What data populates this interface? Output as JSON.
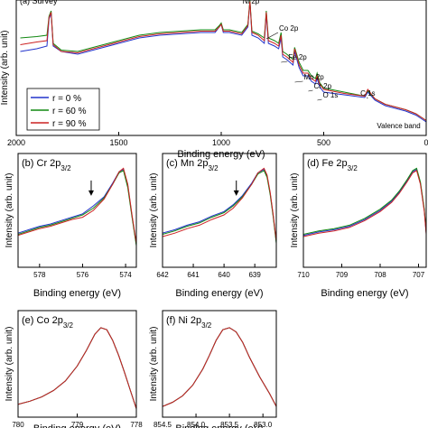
{
  "chart_data": [
    {
      "id": "survey",
      "type": "line",
      "panel_label": "(a) Survey",
      "xlabel": "Binding energy (eV)",
      "ylabel": "Intensity (arb. unit)",
      "xlim": [
        2000,
        0
      ],
      "x_reversed": true,
      "xticks": [
        2000,
        1500,
        1000,
        500,
        0
      ],
      "xtick_labels": [
        "2000",
        "1500",
        "1000",
        "500",
        "0"
      ],
      "series": [
        {
          "name": "r = 0 %",
          "color": "#2233cc",
          "x": [
            1980,
            1900,
            1850,
            1840,
            1830,
            1820,
            1780,
            1700,
            1600,
            1500,
            1400,
            1300,
            1200,
            1100,
            1030,
            1010,
            1000,
            990,
            960,
            900,
            870,
            860,
            850,
            820,
            790,
            780,
            770,
            740,
            720,
            708,
            700,
            680,
            650,
            642,
            620,
            600,
            577,
            560,
            540,
            532,
            520,
            500,
            400,
            300,
            285,
            250,
            200,
            100,
            50,
            20,
            0
          ],
          "y": [
            0.62,
            0.64,
            0.66,
            0.86,
            0.9,
            0.66,
            0.62,
            0.6,
            0.64,
            0.68,
            0.72,
            0.74,
            0.75,
            0.76,
            0.76,
            0.8,
            0.82,
            0.76,
            0.76,
            0.74,
            0.8,
            0.99,
            0.74,
            0.72,
            0.68,
            0.9,
            0.68,
            0.66,
            0.64,
            0.72,
            0.58,
            0.56,
            0.52,
            0.62,
            0.5,
            0.44,
            0.44,
            0.4,
            0.38,
            0.42,
            0.36,
            0.32,
            0.3,
            0.28,
            0.32,
            0.26,
            0.22,
            0.18,
            0.15,
            0.12,
            0.1
          ]
        },
        {
          "name": "r = 60 %",
          "color": "#118811",
          "x": [
            1980,
            1900,
            1850,
            1840,
            1830,
            1820,
            1780,
            1700,
            1600,
            1500,
            1400,
            1300,
            1200,
            1100,
            1030,
            1010,
            1000,
            990,
            960,
            900,
            870,
            860,
            850,
            820,
            790,
            780,
            770,
            740,
            720,
            708,
            700,
            680,
            650,
            642,
            620,
            600,
            577,
            560,
            540,
            532,
            520,
            500,
            400,
            300,
            285,
            250,
            200,
            100,
            50,
            20,
            0
          ],
          "y": [
            0.72,
            0.73,
            0.74,
            0.88,
            0.92,
            0.68,
            0.63,
            0.62,
            0.66,
            0.7,
            0.74,
            0.76,
            0.77,
            0.78,
            0.78,
            0.81,
            0.83,
            0.78,
            0.78,
            0.76,
            0.82,
            1.0,
            0.77,
            0.75,
            0.72,
            0.92,
            0.72,
            0.7,
            0.68,
            0.76,
            0.62,
            0.6,
            0.56,
            0.65,
            0.54,
            0.48,
            0.48,
            0.44,
            0.42,
            0.46,
            0.39,
            0.35,
            0.32,
            0.29,
            0.33,
            0.27,
            0.23,
            0.19,
            0.16,
            0.13,
            0.11
          ]
        },
        {
          "name": "r = 90 %",
          "color": "#cc2222",
          "x": [
            1980,
            1900,
            1850,
            1840,
            1830,
            1820,
            1780,
            1700,
            1600,
            1500,
            1400,
            1300,
            1200,
            1100,
            1030,
            1010,
            1000,
            990,
            960,
            900,
            870,
            860,
            850,
            820,
            790,
            780,
            770,
            740,
            720,
            708,
            700,
            680,
            650,
            642,
            620,
            600,
            577,
            560,
            540,
            532,
            520,
            500,
            400,
            300,
            285,
            250,
            200,
            100,
            50,
            20,
            0
          ],
          "y": [
            0.67,
            0.69,
            0.7,
            0.87,
            0.91,
            0.67,
            0.62,
            0.61,
            0.65,
            0.69,
            0.73,
            0.75,
            0.76,
            0.77,
            0.77,
            0.8,
            0.82,
            0.77,
            0.77,
            0.75,
            0.81,
            0.99,
            0.76,
            0.74,
            0.7,
            0.91,
            0.7,
            0.68,
            0.66,
            0.74,
            0.6,
            0.58,
            0.54,
            0.64,
            0.52,
            0.46,
            0.46,
            0.42,
            0.4,
            0.44,
            0.38,
            0.34,
            0.31,
            0.29,
            0.34,
            0.27,
            0.23,
            0.19,
            0.16,
            0.13,
            0.11
          ]
        }
      ],
      "annotations": [
        {
          "text": "Ni 2p",
          "x": 855
        },
        {
          "text": "Co 2p",
          "x": 780
        },
        {
          "text": "Fe 2p",
          "x": 708
        },
        {
          "text": "Mn 2p",
          "x": 641
        },
        {
          "text": "Cr 2p",
          "x": 575
        },
        {
          "text": "O 1s",
          "x": 531
        },
        {
          "text": "C 1s",
          "x": 285
        },
        {
          "text": "Valence band",
          "x": 10
        }
      ],
      "legend_position": "bottom-left"
    },
    {
      "id": "cr",
      "type": "line",
      "panel_label": "(b) Cr 2p",
      "panel_sub": "3/2",
      "xlabel": "Binding energy (eV)",
      "ylabel": "Intensity (arb. unit)",
      "xlim": [
        579,
        573.5
      ],
      "x_reversed": true,
      "xticks": [
        578,
        576,
        574
      ],
      "xtick_labels": [
        "578",
        "576",
        "574"
      ],
      "arrow_x": 575.6,
      "series": [
        {
          "name": "r = 0 %",
          "color": "#2233cc",
          "x": [
            579,
            578.5,
            578,
            577.5,
            577,
            576.5,
            576,
            575.5,
            575,
            574.6,
            574.3,
            574.1,
            573.9,
            573.7,
            573.5
          ],
          "y": [
            0.3,
            0.33,
            0.36,
            0.38,
            0.41,
            0.44,
            0.47,
            0.54,
            0.62,
            0.74,
            0.84,
            0.86,
            0.72,
            0.45,
            0.2
          ]
        },
        {
          "name": "r = 60 %",
          "color": "#118811",
          "x": [
            579,
            578.5,
            578,
            577.5,
            577,
            576.5,
            576,
            575.5,
            575,
            574.6,
            574.3,
            574.1,
            573.9,
            573.7,
            573.5
          ],
          "y": [
            0.29,
            0.32,
            0.35,
            0.37,
            0.4,
            0.43,
            0.46,
            0.52,
            0.61,
            0.73,
            0.83,
            0.85,
            0.7,
            0.44,
            0.19
          ]
        },
        {
          "name": "r = 90 %",
          "color": "#cc2222",
          "x": [
            579,
            578.5,
            578,
            577.5,
            577,
            576.5,
            576,
            575.5,
            575,
            574.6,
            574.3,
            574.1,
            573.9,
            573.7,
            573.5
          ],
          "y": [
            0.28,
            0.31,
            0.34,
            0.36,
            0.39,
            0.42,
            0.44,
            0.5,
            0.6,
            0.73,
            0.84,
            0.87,
            0.73,
            0.46,
            0.21
          ]
        }
      ]
    },
    {
      "id": "mn",
      "type": "line",
      "panel_label": "(c) Mn 2p",
      "panel_sub": "3/2",
      "xlabel": "Binding energy (eV)",
      "ylabel": "Intensity (arb. unit)",
      "xlim": [
        642,
        638.3
      ],
      "x_reversed": true,
      "xticks": [
        642,
        641,
        640,
        639
      ],
      "xtick_labels": [
        "642",
        "641",
        "640",
        "639"
      ],
      "arrow_x": 639.6,
      "series": [
        {
          "name": "r = 0 %",
          "color": "#2233cc",
          "x": [
            642,
            641.6,
            641.2,
            640.8,
            640.4,
            640,
            639.7,
            639.4,
            639.1,
            638.9,
            638.7,
            638.6,
            638.5,
            638.4,
            638.3
          ],
          "y": [
            0.3,
            0.33,
            0.37,
            0.4,
            0.45,
            0.49,
            0.55,
            0.63,
            0.74,
            0.83,
            0.86,
            0.8,
            0.65,
            0.45,
            0.22
          ]
        },
        {
          "name": "r = 60 %",
          "color": "#118811",
          "x": [
            642,
            641.6,
            641.2,
            640.8,
            640.4,
            640,
            639.7,
            639.4,
            639.1,
            638.9,
            638.7,
            638.6,
            638.5,
            638.4,
            638.3
          ],
          "y": [
            0.29,
            0.32,
            0.36,
            0.39,
            0.44,
            0.48,
            0.54,
            0.62,
            0.73,
            0.82,
            0.85,
            0.79,
            0.64,
            0.44,
            0.21
          ]
        },
        {
          "name": "r = 90 %",
          "color": "#cc2222",
          "x": [
            642,
            641.6,
            641.2,
            640.8,
            640.4,
            640,
            639.7,
            639.4,
            639.1,
            638.9,
            638.7,
            638.6,
            638.5,
            638.4,
            638.3
          ],
          "y": [
            0.27,
            0.3,
            0.34,
            0.37,
            0.42,
            0.46,
            0.52,
            0.61,
            0.73,
            0.83,
            0.87,
            0.81,
            0.66,
            0.46,
            0.23
          ]
        }
      ]
    },
    {
      "id": "fe",
      "type": "line",
      "panel_label": "(d) Fe 2p",
      "panel_sub": "3/2",
      "xlabel": "Binding energy (eV)",
      "ylabel": "Intensity (arb. unit)",
      "xlim": [
        710,
        706.8
      ],
      "x_reversed": true,
      "xticks": [
        710,
        709,
        708,
        707
      ],
      "xtick_labels": [
        "710",
        "709",
        "708",
        "707"
      ],
      "series": [
        {
          "name": "r = 0 %",
          "color": "#2233cc",
          "x": [
            710,
            709.6,
            709.2,
            708.8,
            708.4,
            708,
            707.7,
            707.5,
            707.3,
            707.15,
            707.05,
            706.95,
            706.85,
            706.8
          ],
          "y": [
            0.28,
            0.31,
            0.33,
            0.36,
            0.42,
            0.5,
            0.58,
            0.66,
            0.76,
            0.84,
            0.86,
            0.74,
            0.5,
            0.3
          ]
        },
        {
          "name": "r = 60 %",
          "color": "#118811",
          "x": [
            710,
            709.6,
            709.2,
            708.8,
            708.4,
            708,
            707.7,
            707.5,
            707.3,
            707.15,
            707.05,
            706.95,
            706.85,
            706.8
          ],
          "y": [
            0.29,
            0.32,
            0.34,
            0.37,
            0.43,
            0.51,
            0.59,
            0.67,
            0.77,
            0.85,
            0.87,
            0.75,
            0.51,
            0.31
          ]
        },
        {
          "name": "r = 90 %",
          "color": "#cc2222",
          "x": [
            710,
            709.6,
            709.2,
            708.8,
            708.4,
            708,
            707.7,
            707.5,
            707.3,
            707.15,
            707.05,
            706.95,
            706.85,
            706.8
          ],
          "y": [
            0.27,
            0.3,
            0.32,
            0.35,
            0.41,
            0.49,
            0.57,
            0.65,
            0.75,
            0.83,
            0.85,
            0.73,
            0.49,
            0.29
          ]
        }
      ]
    },
    {
      "id": "co",
      "type": "line",
      "panel_label": "(e) Co 2p",
      "panel_sub": "3/2",
      "xlabel": "Binding energy (eV)",
      "ylabel": "Intensity (arb. unit)",
      "xlim": [
        780,
        778
      ],
      "x_reversed": true,
      "xticks": [
        780,
        779,
        778
      ],
      "xtick_labels": [
        "780",
        "779",
        "778"
      ],
      "series": [
        {
          "name": "r = 0 %",
          "color": "#2233cc",
          "x": [
            780,
            779.8,
            779.6,
            779.4,
            779.2,
            779.0,
            778.85,
            778.7,
            778.6,
            778.5,
            778.4,
            778.3,
            778.2,
            778.1,
            778.0
          ],
          "y": [
            0.12,
            0.15,
            0.19,
            0.25,
            0.34,
            0.48,
            0.62,
            0.78,
            0.84,
            0.82,
            0.72,
            0.58,
            0.42,
            0.25,
            0.08
          ]
        },
        {
          "name": "r = 60 %",
          "color": "#118811",
          "x": [
            780,
            779.8,
            779.6,
            779.4,
            779.2,
            779.0,
            778.85,
            778.7,
            778.6,
            778.5,
            778.4,
            778.3,
            778.2,
            778.1,
            778.0
          ],
          "y": [
            0.12,
            0.15,
            0.19,
            0.25,
            0.34,
            0.48,
            0.62,
            0.78,
            0.84,
            0.82,
            0.72,
            0.58,
            0.42,
            0.25,
            0.08
          ]
        },
        {
          "name": "r = 90 %",
          "color": "#cc2222",
          "x": [
            780,
            779.8,
            779.6,
            779.4,
            779.2,
            779.0,
            778.85,
            778.7,
            778.6,
            778.5,
            778.4,
            778.3,
            778.2,
            778.1,
            778.0
          ],
          "y": [
            0.12,
            0.15,
            0.19,
            0.25,
            0.34,
            0.48,
            0.62,
            0.78,
            0.84,
            0.82,
            0.72,
            0.58,
            0.42,
            0.25,
            0.08
          ]
        }
      ]
    },
    {
      "id": "ni",
      "type": "line",
      "panel_label": "(f) Ni 2p",
      "panel_sub": "3/2",
      "xlabel": "Binding energy (eV)",
      "ylabel": "Intensity (arb. unit)",
      "xlim": [
        854.5,
        852.8
      ],
      "x_reversed": true,
      "xticks": [
        854.5,
        854.0,
        853.5,
        853.0
      ],
      "xtick_labels": [
        "854.5",
        "854.0",
        "853.5",
        "853.0"
      ],
      "series": [
        {
          "name": "r = 0 %",
          "color": "#2233cc",
          "x": [
            854.5,
            854.35,
            854.2,
            854.05,
            853.9,
            853.8,
            853.7,
            853.6,
            853.5,
            853.4,
            853.3,
            853.2,
            853.05,
            852.9,
            852.8
          ],
          "y": [
            0.1,
            0.14,
            0.2,
            0.3,
            0.45,
            0.58,
            0.72,
            0.82,
            0.84,
            0.8,
            0.7,
            0.56,
            0.38,
            0.22,
            0.1
          ]
        },
        {
          "name": "r = 60 %",
          "color": "#118811",
          "x": [
            854.5,
            854.35,
            854.2,
            854.05,
            853.9,
            853.8,
            853.7,
            853.6,
            853.5,
            853.4,
            853.3,
            853.2,
            853.05,
            852.9,
            852.8
          ],
          "y": [
            0.1,
            0.14,
            0.2,
            0.3,
            0.45,
            0.58,
            0.72,
            0.82,
            0.84,
            0.8,
            0.7,
            0.56,
            0.38,
            0.22,
            0.1
          ]
        },
        {
          "name": "r = 90 %",
          "color": "#cc2222",
          "x": [
            854.5,
            854.35,
            854.2,
            854.05,
            853.9,
            853.8,
            853.7,
            853.6,
            853.5,
            853.4,
            853.3,
            853.2,
            853.05,
            852.9,
            852.8
          ],
          "y": [
            0.1,
            0.14,
            0.2,
            0.3,
            0.45,
            0.58,
            0.72,
            0.82,
            0.84,
            0.8,
            0.7,
            0.56,
            0.38,
            0.22,
            0.1
          ]
        }
      ]
    }
  ]
}
